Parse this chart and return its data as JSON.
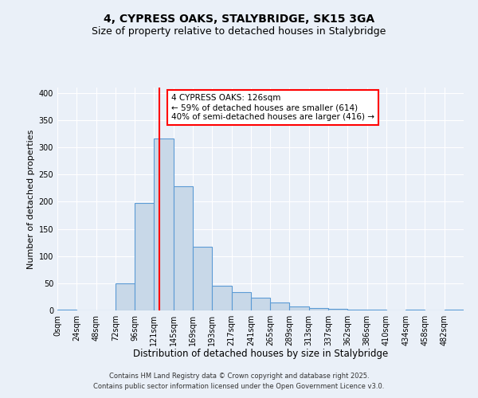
{
  "title": "4, CYPRESS OAKS, STALYBRIDGE, SK15 3GA",
  "subtitle": "Size of property relative to detached houses in Stalybridge",
  "xlabel": "Distribution of detached houses by size in Stalybridge",
  "ylabel": "Number of detached properties",
  "bar_color": "#c8d8e8",
  "bar_edge_color": "#5b9bd5",
  "background_color": "#eaf0f8",
  "grid_color": "#ffffff",
  "vline_x": 126,
  "vline_color": "red",
  "bin_width": 24,
  "bin_starts": [
    0,
    24,
    48,
    72,
    96,
    120,
    144,
    168,
    192,
    216,
    240,
    264,
    288,
    312,
    336,
    360,
    384,
    408,
    432,
    456,
    480
  ],
  "bin_heights": [
    1,
    0,
    0,
    50,
    197,
    317,
    228,
    117,
    46,
    34,
    23,
    15,
    8,
    5,
    3,
    2,
    1,
    0,
    1,
    0,
    2
  ],
  "tick_labels": [
    "0sqm",
    "24sqm",
    "48sqm",
    "72sqm",
    "96sqm",
    "121sqm",
    "145sqm",
    "169sqm",
    "193sqm",
    "217sqm",
    "241sqm",
    "265sqm",
    "289sqm",
    "313sqm",
    "337sqm",
    "362sqm",
    "386sqm",
    "410sqm",
    "434sqm",
    "458sqm",
    "482sqm"
  ],
  "ylim": [
    0,
    410
  ],
  "yticks": [
    0,
    50,
    100,
    150,
    200,
    250,
    300,
    350,
    400
  ],
  "annotation_title": "4 CYPRESS OAKS: 126sqm",
  "annotation_line1": "← 59% of detached houses are smaller (614)",
  "annotation_line2": "40% of semi-detached houses are larger (416) →",
  "annotation_box_color": "white",
  "annotation_box_edge_color": "red",
  "footer1": "Contains HM Land Registry data © Crown copyright and database right 2025.",
  "footer2": "Contains public sector information licensed under the Open Government Licence v3.0.",
  "title_fontsize": 10,
  "subtitle_fontsize": 9,
  "xlabel_fontsize": 8.5,
  "ylabel_fontsize": 8,
  "tick_fontsize": 7,
  "annotation_fontsize": 7.5,
  "footer_fontsize": 6
}
